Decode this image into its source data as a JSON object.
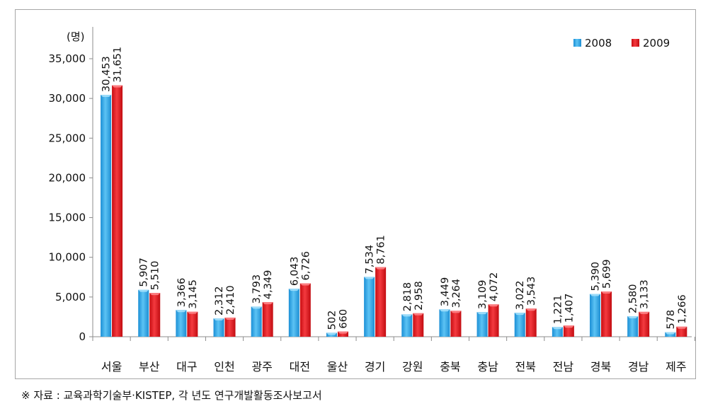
{
  "chart_data": {
    "type": "bar",
    "unit_label": "(명)",
    "categories": [
      "서울",
      "부산",
      "대구",
      "인천",
      "광주",
      "대전",
      "울산",
      "경기",
      "강원",
      "충북",
      "충남",
      "전북",
      "전남",
      "경북",
      "경남",
      "제주"
    ],
    "series": [
      {
        "name": "2008",
        "color": "#2ea3e6",
        "values": [
          30453,
          5907,
          3366,
          2312,
          3793,
          6043,
          502,
          7534,
          2818,
          3449,
          3109,
          3022,
          1221,
          5390,
          2580,
          578
        ],
        "labels": [
          "30,453",
          "5,907",
          "3,366",
          "2,312",
          "3,793",
          "6,043",
          "502",
          "7,534",
          "2,818",
          "3,449",
          "3,109",
          "3,022",
          "1,221",
          "5,390",
          "2,580",
          "578"
        ]
      },
      {
        "name": "2009",
        "color": "#e3141b",
        "values": [
          31651,
          5510,
          3145,
          2410,
          4349,
          6726,
          660,
          8761,
          2958,
          3264,
          4072,
          3543,
          1407,
          5699,
          3133,
          1266
        ],
        "labels": [
          "31,651",
          "5,510",
          "3,145",
          "2,410",
          "4,349",
          "6,726",
          "660",
          "8,761",
          "2,958",
          "3,264",
          "4,072",
          "3,543",
          "1,407",
          "5,699",
          "3,133",
          "1,266"
        ]
      }
    ],
    "ylim": [
      0,
      35000
    ],
    "yticks": [
      0,
      5000,
      10000,
      15000,
      20000,
      25000,
      30000,
      35000
    ],
    "ytick_labels": [
      "0",
      "5,000",
      "10,000",
      "15,000",
      "20,000",
      "25,000",
      "30,000",
      "35,000"
    ],
    "grid": false,
    "legend_position": "top-right"
  },
  "source_note": "※ 자료 : 교육과학기술부·KISTEP, 각 년도 연구개발활동조사보고서"
}
